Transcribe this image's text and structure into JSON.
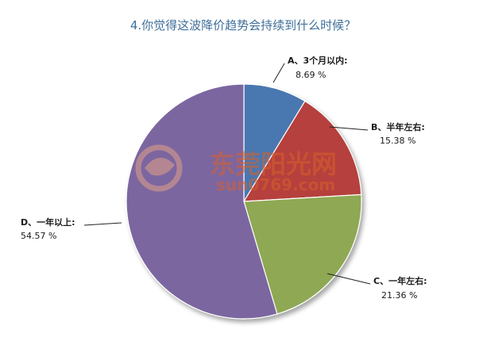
{
  "chart_data": {
    "type": "pie",
    "title": "4.你觉得这波降价趋势会持续到什么时候？",
    "slices": [
      {
        "name": "A、3个月以内:",
        "value": 8.69,
        "label": "8.69 %",
        "color": "#4a77b0"
      },
      {
        "name": "B、半年左右:",
        "value": 15.38,
        "label": "15.38 %",
        "color": "#b5413c"
      },
      {
        "name": "C、一年左右:",
        "value": 21.36,
        "label": "21.36 %",
        "color": "#8ea852"
      },
      {
        "name": "D、一年以上:",
        "value": 54.57,
        "label": "54.57 %",
        "color": "#7c66a0"
      }
    ],
    "start_angle": "12 o'clock",
    "direction": "clockwise",
    "legend": "none"
  },
  "watermark": {
    "brand_text": "东莞阳光网",
    "url_text": "sun0769.com",
    "color": "#d9602a"
  }
}
